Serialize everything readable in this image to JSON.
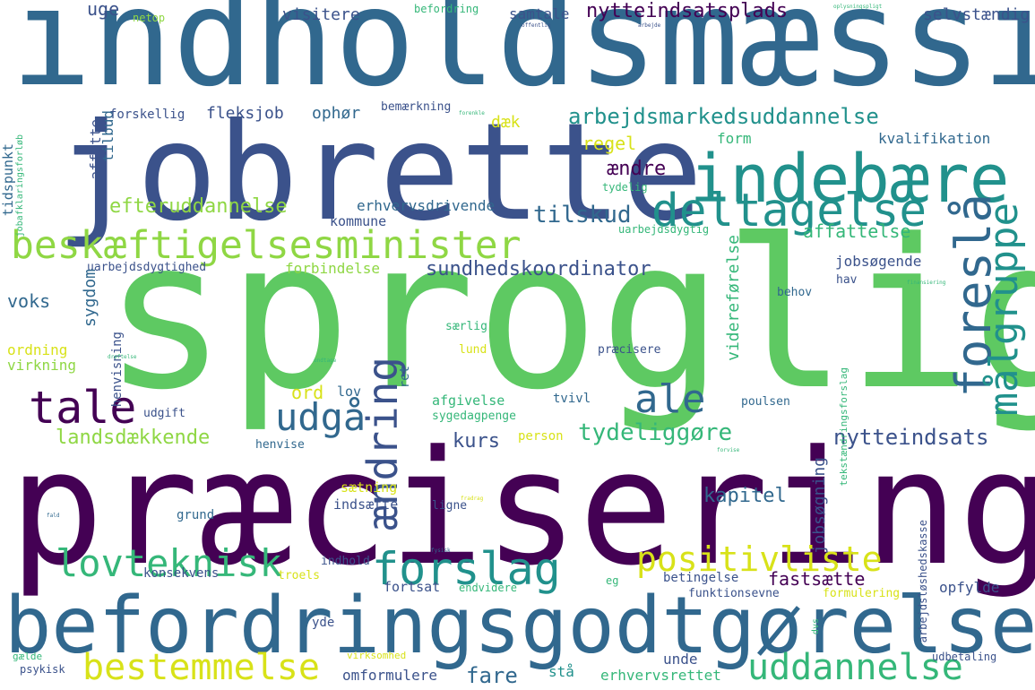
{
  "title": "Word cloud",
  "palette": {
    "dark_purple": "#440154",
    "indigo": "#3b528b",
    "blue": "#31688e",
    "teal": "#21918c",
    "green_teal": "#1f9e89",
    "green": "#35b779",
    "light_green": "#5ec962",
    "yellow_green": "#8fd744",
    "yellow": "#d8e219",
    "bright_yellow": "#fde725"
  },
  "words": [
    {
      "text": "indholdsmæssig",
      "color": "#31688e"
    },
    {
      "text": "jobrette",
      "color": "#3b528b"
    },
    {
      "text": "indebære",
      "color": "#21918c"
    },
    {
      "text": "sproglig",
      "color": "#5ec962"
    },
    {
      "text": "præcisering",
      "color": "#440154"
    },
    {
      "text": "befordringsgodtgørelse",
      "color": "#31688e"
    },
    {
      "text": "beskæftigelsesminister",
      "color": "#8fd744"
    },
    {
      "text": "arbejdsmarkedsuddannelse",
      "color": "#21918c"
    },
    {
      "text": "deltagelse",
      "color": "#21918c"
    },
    {
      "text": "foreslå",
      "color": "#31688e"
    },
    {
      "text": "målgruppe",
      "color": "#21918c"
    },
    {
      "text": "tale",
      "color": "#440154"
    },
    {
      "text": "udgå",
      "color": "#31688e"
    },
    {
      "text": "ændring",
      "color": "#3b528b"
    },
    {
      "text": "ale",
      "color": "#31688e"
    },
    {
      "text": "forslag",
      "color": "#21918c"
    },
    {
      "text": "positivliste",
      "color": "#d8e219"
    },
    {
      "text": "lovteknisk",
      "color": "#35b779"
    },
    {
      "text": "bestemmelse",
      "color": "#d8e219"
    },
    {
      "text": "uddannelse",
      "color": "#35b779"
    },
    {
      "text": "nytteindsatsplads",
      "color": "#440154"
    },
    {
      "text": "efteruddannelse",
      "color": "#8fd744"
    },
    {
      "text": "tilskud",
      "color": "#31688e"
    },
    {
      "text": "affattelse",
      "color": "#35b779"
    },
    {
      "text": "sundhedskoordinator",
      "color": "#3b528b"
    },
    {
      "text": "landsdækkende",
      "color": "#8fd744"
    },
    {
      "text": "tydeliggøre",
      "color": "#35b779"
    },
    {
      "text": "nytteindsats",
      "color": "#3b528b"
    },
    {
      "text": "kurs",
      "color": "#3b528b"
    },
    {
      "text": "kapitel",
      "color": "#31688e"
    },
    {
      "text": "fastsætte",
      "color": "#440154"
    },
    {
      "text": "fare",
      "color": "#31688e"
    },
    {
      "text": "uge",
      "color": "#3b528b"
    },
    {
      "text": "visitere",
      "color": "#3b528b"
    },
    {
      "text": "samtale",
      "color": "#3b528b"
    },
    {
      "text": "selvstændig",
      "color": "#3b528b"
    },
    {
      "text": "befordring",
      "color": "#35b779"
    },
    {
      "text": "netop",
      "color": "#8fd744"
    },
    {
      "text": "tilbud",
      "color": "#31688e"
    },
    {
      "text": "affatte",
      "color": "#3b528b"
    },
    {
      "text": "forskellig",
      "color": "#3b528b"
    },
    {
      "text": "fleksjob",
      "color": "#3b528b"
    },
    {
      "text": "ophør",
      "color": "#31688e"
    },
    {
      "text": "dæk",
      "color": "#d8e219"
    },
    {
      "text": "bemærkning",
      "color": "#3b528b"
    },
    {
      "text": "regel",
      "color": "#d8e219"
    },
    {
      "text": "form",
      "color": "#35b779"
    },
    {
      "text": "kvalifikation",
      "color": "#31688e"
    },
    {
      "text": "ændre",
      "color": "#440154"
    },
    {
      "text": "tydelig",
      "color": "#35b779"
    },
    {
      "text": "tidspunkt",
      "color": "#31688e"
    },
    {
      "text": "jobafklaringsforløb",
      "color": "#35b779"
    },
    {
      "text": "erhvervsdrivende",
      "color": "#31688e"
    },
    {
      "text": "kommune",
      "color": "#3b528b"
    },
    {
      "text": "uarbejdsdygtig",
      "color": "#35b779"
    },
    {
      "text": "uarbejdsdygtighed",
      "color": "#3b528b"
    },
    {
      "text": "forbindelse",
      "color": "#8fd744"
    },
    {
      "text": "jobsøgende",
      "color": "#3b528b"
    },
    {
      "text": "hav",
      "color": "#3b528b"
    },
    {
      "text": "behov",
      "color": "#31688e"
    },
    {
      "text": "sygdom",
      "color": "#31688e"
    },
    {
      "text": "voks",
      "color": "#31688e"
    },
    {
      "text": "ordning",
      "color": "#d8e219"
    },
    {
      "text": "virkning",
      "color": "#8fd744"
    },
    {
      "text": "henvisning",
      "color": "#3b528b"
    },
    {
      "text": "særlig",
      "color": "#35b779"
    },
    {
      "text": "lund",
      "color": "#d8e219"
    },
    {
      "text": "præcisere",
      "color": "#3b528b"
    },
    {
      "text": "videreførelse",
      "color": "#35b779"
    },
    {
      "text": "ord",
      "color": "#d8e219"
    },
    {
      "text": "lov",
      "color": "#31688e"
    },
    {
      "text": "ret",
      "color": "#31688e"
    },
    {
      "text": "afgivelse",
      "color": "#35b779"
    },
    {
      "text": "tvivl",
      "color": "#31688e"
    },
    {
      "text": "poulsen",
      "color": "#31688e"
    },
    {
      "text": "udgift",
      "color": "#3b528b"
    },
    {
      "text": "sygedagpenge",
      "color": "#35b779"
    },
    {
      "text": "person",
      "color": "#d8e219"
    },
    {
      "text": "henvise",
      "color": "#31688e"
    },
    {
      "text": "sætning",
      "color": "#d8e219"
    },
    {
      "text": "indsætte",
      "color": "#3b528b"
    },
    {
      "text": "ligne",
      "color": "#3b528b"
    },
    {
      "text": "grund",
      "color": "#31688e"
    },
    {
      "text": "jobsøgning",
      "color": "#3b528b"
    },
    {
      "text": "indhold",
      "color": "#3b528b"
    },
    {
      "text": "konsekvens",
      "color": "#3b528b"
    },
    {
      "text": "troels",
      "color": "#d8e219"
    },
    {
      "text": "fortsat",
      "color": "#3b528b"
    },
    {
      "text": "endvidere",
      "color": "#35b779"
    },
    {
      "text": "eg",
      "color": "#35b779"
    },
    {
      "text": "betingelse",
      "color": "#3b528b"
    },
    {
      "text": "funktionsevne",
      "color": "#3b528b"
    },
    {
      "text": "formulering",
      "color": "#d8e219"
    },
    {
      "text": "opfylde",
      "color": "#3b528b"
    },
    {
      "text": "yde",
      "color": "#3b528b"
    },
    {
      "text": "unde",
      "color": "#3b528b"
    },
    {
      "text": "omformulere",
      "color": "#3b528b"
    },
    {
      "text": "stå",
      "color": "#21918c"
    },
    {
      "text": "erhvervsrettet",
      "color": "#35b779"
    },
    {
      "text": "udbetaling",
      "color": "#3b528b"
    },
    {
      "text": "psykisk",
      "color": "#3b528b"
    },
    {
      "text": "gælde",
      "color": "#35b779"
    },
    {
      "text": "virksomhed",
      "color": "#d8e219"
    },
    {
      "text": "dvs",
      "color": "#35b779"
    },
    {
      "text": "arbejdsløshedskasse",
      "color": "#3b528b"
    },
    {
      "text": "tekstændringsforslag",
      "color": "#35b779"
    },
    {
      "text": "oplysningspligt",
      "color": "#35b779"
    },
    {
      "text": "arbejde",
      "color": "#3b528b"
    },
    {
      "text": "offentlig",
      "color": "#3b528b"
    },
    {
      "text": "forenkle",
      "color": "#35b779"
    },
    {
      "text": "fradrag",
      "color": "#d8e219"
    },
    {
      "text": "undtage",
      "color": "#35b779"
    },
    {
      "text": "fald",
      "color": "#31688e"
    },
    {
      "text": "finansiering",
      "color": "#35b779"
    },
    {
      "text": "drøftelse",
      "color": "#35b779"
    },
    {
      "text": "forvise",
      "color": "#35b779"
    },
    {
      "text": "fysisk",
      "color": "#31688e"
    }
  ]
}
